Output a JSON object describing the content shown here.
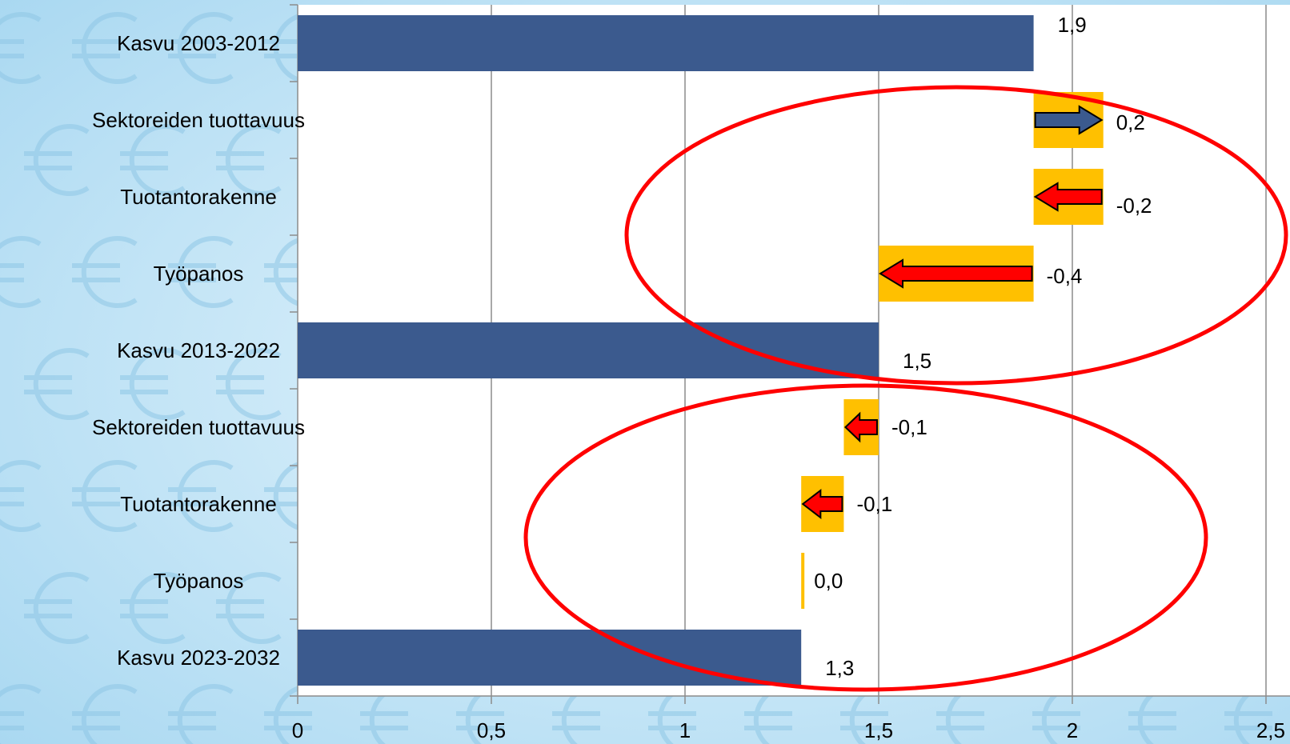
{
  "chart_data": {
    "type": "bar",
    "orientation": "horizontal",
    "style": "waterfall",
    "title": "",
    "xlabel": "",
    "ylabel": "",
    "xlim": [
      0,
      2.5
    ],
    "x_ticks": [
      0,
      0.5,
      1,
      1.5,
      2,
      2.5
    ],
    "x_tick_labels": [
      "0",
      "0,5",
      "1",
      "1,5",
      "2",
      "2,5"
    ],
    "grid": "vertical",
    "legend": "none",
    "categories": [
      "Kasvu 2003-2012",
      "Sektoreiden tuottavuus",
      "Tuotantorakenne",
      "Työpanos",
      "Kasvu 2013-2022",
      "Sektoreiden tuottavuus",
      "Tuotantorakenne",
      "Työpanos",
      "Kasvu 2023-2032"
    ],
    "items": [
      {
        "kind": "total",
        "start": 0,
        "end": 1.9,
        "label": "1,9"
      },
      {
        "kind": "change",
        "start": 1.9,
        "end": 2.08,
        "label": "0,2"
      },
      {
        "kind": "change",
        "start": 2.08,
        "end": 1.9,
        "label": "-0,2"
      },
      {
        "kind": "change",
        "start": 1.9,
        "end": 1.5,
        "label": "-0,4"
      },
      {
        "kind": "total",
        "start": 0,
        "end": 1.5,
        "label": "1,5"
      },
      {
        "kind": "change",
        "start": 1.5,
        "end": 1.41,
        "label": "-0,1"
      },
      {
        "kind": "change",
        "start": 1.41,
        "end": 1.3,
        "label": "-0,1"
      },
      {
        "kind": "change",
        "start": 1.3,
        "end": 1.3,
        "label": "0,0"
      },
      {
        "kind": "total",
        "start": 0,
        "end": 1.3,
        "label": "1,3"
      }
    ],
    "colors": {
      "total_bar": "#3b5a8e",
      "change_box": "#ffc000",
      "increase_arrow": "#3b5a8e",
      "decrease_arrow": "#ff0000",
      "highlight_ellipse": "#ff0000",
      "grid": "#8c8c8c",
      "plot_background": "#ffffff"
    },
    "annotations": [
      "red-ellipse-top",
      "red-ellipse-bottom"
    ]
  }
}
